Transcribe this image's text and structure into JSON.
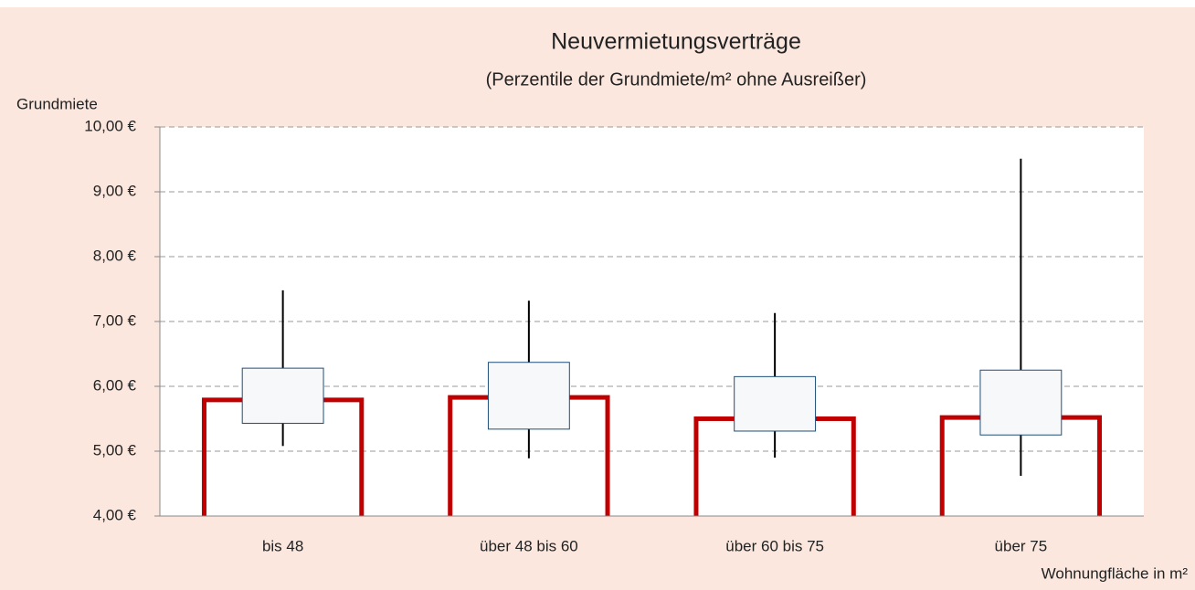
{
  "chart_data": {
    "type": "box",
    "title": "Neuvermietungsverträge",
    "subtitle": "(Perzentile der Grundmiete/m² ohne Ausreißer)",
    "y_label": "Grundmiete",
    "x_label": "Wohnungfläche in m²",
    "categories": [
      "bis 48",
      "über 48 bis 60",
      "über 60 bis 75",
      "über 75"
    ],
    "values": [
      5.79,
      5.83,
      5.5,
      5.52
    ],
    "color": "#c00000",
    "box": {
      "low": [
        5.08,
        4.89,
        4.9,
        4.62
      ],
      "q1": [
        5.43,
        5.34,
        5.31,
        5.25
      ],
      "q3": [
        6.28,
        6.37,
        6.15,
        6.25
      ],
      "high": [
        7.48,
        7.32,
        7.13,
        9.51
      ]
    },
    "box_color": "#1f4e79",
    "ylim": [
      4,
      10
    ],
    "yticks": [
      {
        "value": 4,
        "label": "4,00 €"
      },
      {
        "value": 5,
        "label": "5,00 €"
      },
      {
        "value": 6,
        "label": "6,00 €"
      },
      {
        "value": 7,
        "label": "7,00 €"
      },
      {
        "value": 8,
        "label": "8,00 €"
      },
      {
        "value": 9,
        "label": "9,00 €"
      },
      {
        "value": 10,
        "label": "10,00 €"
      }
    ],
    "grid": true
  }
}
